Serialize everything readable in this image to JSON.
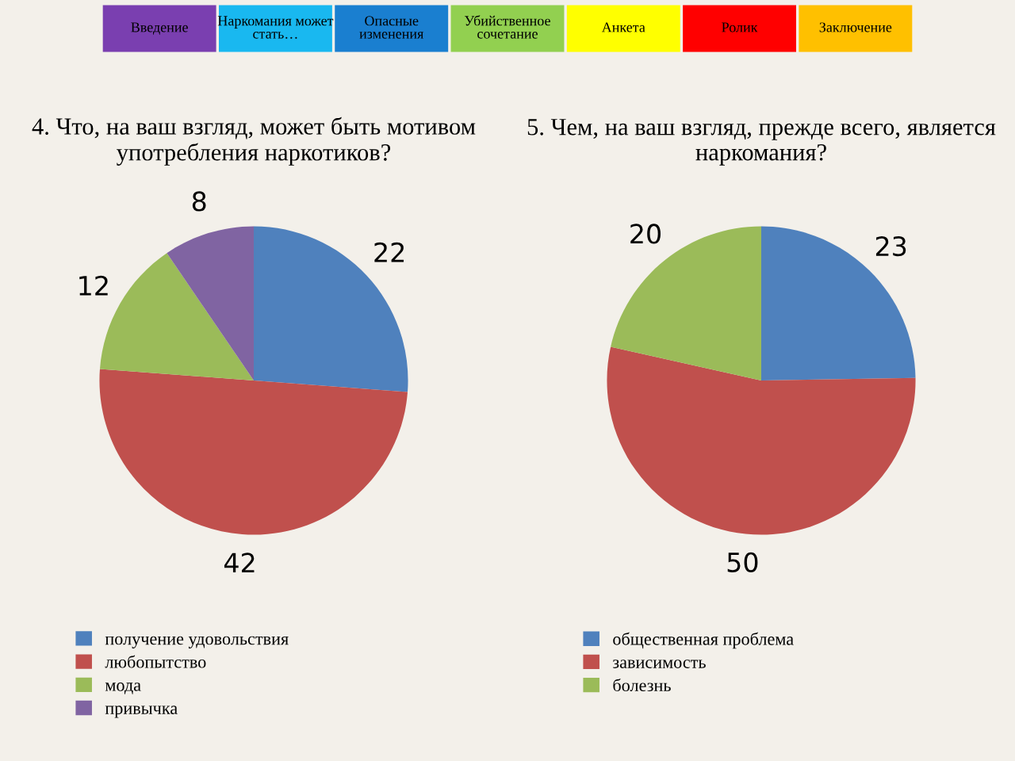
{
  "chart_data": [
    {
      "type": "other",
      "annotations": [
        "Введение",
        "Наркомания может стать…",
        "Опасные изменения",
        "Убийственное сочетание",
        "Анкета",
        "Ролик",
        "Заключение"
      ]
    },
    {
      "type": "pie",
      "title": "4. Что, на ваш взгляд, может быть мотивом употребления наркотиков?",
      "categories": [
        "получение удовольствия",
        "любопытство",
        "мода",
        "привычка"
      ],
      "values": [
        22,
        42,
        12,
        8
      ],
      "colors": [
        "#4f81bd",
        "#c0504d",
        "#9bbb59",
        "#8064a2"
      ],
      "data_labels": true,
      "legend": "bottom"
    },
    {
      "type": "pie",
      "title": "5. Чем, на ваш взгляд, прежде всего, является наркомания?",
      "categories": [
        "общественная проблема",
        "зависимость",
        "болезнь"
      ],
      "values": [
        23,
        50,
        20
      ],
      "colors": [
        "#4f81bd",
        "#c0504d",
        "#9bbb59"
      ],
      "data_labels": true,
      "legend": "bottom"
    }
  ]
}
